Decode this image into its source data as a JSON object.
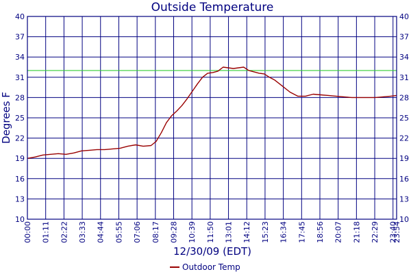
{
  "chart_data": {
    "type": "line",
    "title": "Outside Temperature",
    "xlabel": "12/30/09 (EDT)",
    "ylabel": "Degrees F",
    "ylim": [
      10,
      40
    ],
    "y_ticks": [
      "10",
      "13",
      "16",
      "19",
      "22",
      "25",
      "28",
      "31",
      "34",
      "37",
      "40"
    ],
    "x_range_minutes": [
      0,
      1434
    ],
    "x_tick_labels": [
      "00:00",
      "01:11",
      "02:22",
      "03:33",
      "04:44",
      "05:55",
      "07:06",
      "08:17",
      "09:28",
      "10:39",
      "11:50",
      "13:01",
      "14:12",
      "15:23",
      "16:34",
      "17:45",
      "18:56",
      "20:07",
      "21:18",
      "22:29",
      "23:40",
      "23:54"
    ],
    "grid": true,
    "reference_line": {
      "value": 32,
      "color": "#33cc33"
    },
    "colors": {
      "series": "#990000",
      "grid": "#000080",
      "axis_text": "#000080"
    },
    "series": [
      {
        "name": "Outdoor Temp",
        "x": [
          "00:00",
          "00:30",
          "01:00",
          "01:30",
          "02:00",
          "02:30",
          "03:00",
          "03:30",
          "04:00",
          "04:30",
          "05:00",
          "05:30",
          "06:00",
          "06:30",
          "07:00",
          "07:30",
          "08:00",
          "08:20",
          "08:40",
          "09:00",
          "09:20",
          "09:40",
          "10:00",
          "10:20",
          "10:40",
          "11:00",
          "11:20",
          "11:40",
          "12:00",
          "12:20",
          "12:40",
          "13:00",
          "13:20",
          "13:40",
          "14:00",
          "14:20",
          "14:40",
          "15:00",
          "15:20",
          "15:40",
          "16:00",
          "16:30",
          "17:00",
          "17:30",
          "18:00",
          "18:30",
          "19:00",
          "19:30",
          "20:00",
          "20:30",
          "21:00",
          "21:30",
          "22:00",
          "22:30",
          "23:00",
          "23:30",
          "23:54"
        ],
        "values": [
          19.0,
          19.2,
          19.5,
          19.6,
          19.7,
          19.6,
          19.8,
          20.1,
          20.2,
          20.3,
          20.3,
          20.4,
          20.5,
          20.8,
          21.0,
          20.8,
          20.9,
          21.5,
          22.8,
          24.3,
          25.3,
          26.0,
          26.8,
          27.8,
          28.9,
          30.0,
          31.0,
          31.6,
          31.7,
          31.9,
          32.5,
          32.4,
          32.3,
          32.4,
          32.5,
          32.0,
          31.8,
          31.6,
          31.5,
          31.0,
          30.6,
          29.7,
          28.8,
          28.2,
          28.2,
          28.5,
          28.4,
          28.3,
          28.2,
          28.1,
          28.0,
          28.0,
          28.0,
          28.0,
          28.1,
          28.2,
          28.3
        ]
      }
    ]
  }
}
